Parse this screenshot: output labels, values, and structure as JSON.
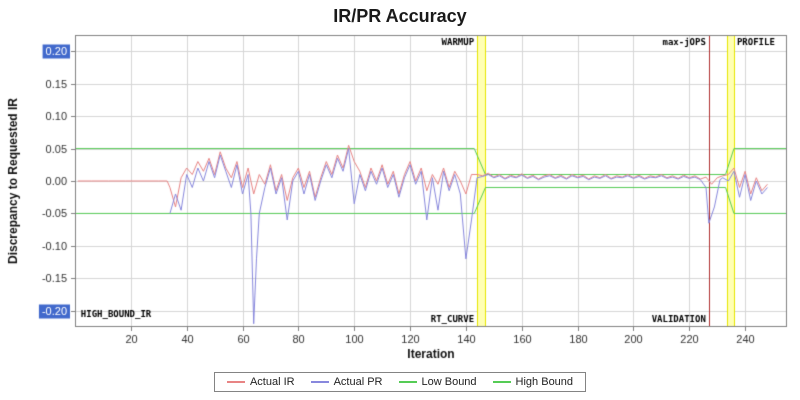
{
  "page": {
    "title": "IR/PR Accuracy"
  },
  "legend": {
    "items": [
      {
        "label": "Actual IR",
        "color": "#e88484"
      },
      {
        "label": "Actual PR",
        "color": "#8888dd"
      },
      {
        "label": "Low Bound",
        "color": "#55cc55"
      },
      {
        "label": "High Bound",
        "color": "#55cc55"
      }
    ]
  },
  "chart_data": {
    "type": "line",
    "title": "IR/PR Accuracy",
    "xlabel": "Iteration",
    "ylabel": "Discrepancy to Requested IR",
    "xlim": [
      0,
      255
    ],
    "ylim": [
      -0.225,
      0.225
    ],
    "x_ticks": [
      20,
      40,
      60,
      80,
      100,
      120,
      140,
      160,
      180,
      200,
      220,
      240
    ],
    "y_ticks": [
      -0.2,
      -0.15,
      -0.1,
      -0.05,
      0.0,
      0.05,
      0.1,
      0.15,
      0.2
    ],
    "y_tick_highlighted": [
      0.2,
      -0.2
    ],
    "grid": true,
    "legend_position": "bottom",
    "colors": {
      "grid": "#d6d6d6",
      "plot_border": "#808080",
      "tick_text": "#333333",
      "axis_title": "#111111",
      "marker_text": "#000000",
      "highlight_bg": "#4169cc",
      "highlight_text": "#ffffff",
      "plot_bg": "#ffffff"
    },
    "bands": [
      {
        "x0": 144,
        "x1": 147,
        "fill": "#ffffb3",
        "border": "#e6e600",
        "label_top": "WARMUP",
        "label_bottom": "RT_CURVE",
        "label_side": "left"
      },
      {
        "x0": 233.5,
        "x1": 236,
        "fill": "#ffffb3",
        "border": "#e6e600",
        "label_top": "PROFILE",
        "label_bottom": "",
        "label_side": "right"
      }
    ],
    "vlines": [
      {
        "x": 227,
        "color": "#b03030",
        "label_top": "max-jOPS",
        "label_bottom": "VALIDATION"
      }
    ],
    "annotations": [
      {
        "text": "HIGH_BOUND_IR",
        "x": 1,
        "y": -0.21
      }
    ],
    "bounds_series": [
      {
        "name": "Low Bound",
        "color": "#55cc55",
        "points": [
          [
            0,
            -0.05
          ],
          [
            143,
            -0.05
          ],
          [
            147,
            -0.01
          ],
          [
            233,
            -0.01
          ],
          [
            236,
            -0.05
          ],
          [
            255,
            -0.05
          ]
        ]
      },
      {
        "name": "High Bound",
        "color": "#55cc55",
        "points": [
          [
            0,
            0.05
          ],
          [
            143,
            0.05
          ],
          [
            147,
            0.01
          ],
          [
            233,
            0.01
          ],
          [
            236,
            0.05
          ],
          [
            255,
            0.05
          ]
        ]
      }
    ],
    "series": [
      {
        "name": "Actual IR",
        "color": "#e88484",
        "points": [
          [
            1,
            0
          ],
          [
            6,
            0
          ],
          [
            12,
            0
          ],
          [
            18,
            0
          ],
          [
            24,
            0
          ],
          [
            30,
            0
          ],
          [
            33,
            0
          ],
          [
            34,
            -0.01
          ],
          [
            36,
            -0.04
          ],
          [
            38,
            0.005
          ],
          [
            40,
            0.02
          ],
          [
            42,
            0.01
          ],
          [
            44,
            0.03
          ],
          [
            46,
            0.015
          ],
          [
            48,
            0.035
          ],
          [
            50,
            0.01
          ],
          [
            52,
            0.045
          ],
          [
            54,
            0.02
          ],
          [
            56,
            0.005
          ],
          [
            58,
            0.03
          ],
          [
            60,
            -0.01
          ],
          [
            62,
            0.02
          ],
          [
            64,
            -0.02
          ],
          [
            66,
            0.01
          ],
          [
            68,
            -0.005
          ],
          [
            70,
            0.025
          ],
          [
            72,
            -0.015
          ],
          [
            74,
            0.01
          ],
          [
            76,
            -0.03
          ],
          [
            78,
            0.005
          ],
          [
            80,
            0.02
          ],
          [
            82,
            -0.01
          ],
          [
            84,
            0.015
          ],
          [
            86,
            -0.025
          ],
          [
            88,
            0.005
          ],
          [
            90,
            0.03
          ],
          [
            92,
            0.01
          ],
          [
            94,
            0.04
          ],
          [
            96,
            0.02
          ],
          [
            98,
            0.055
          ],
          [
            100,
            0.03
          ],
          [
            102,
            0.015
          ],
          [
            104,
            -0.01
          ],
          [
            106,
            0.02
          ],
          [
            108,
            0
          ],
          [
            110,
            0.025
          ],
          [
            112,
            -0.005
          ],
          [
            114,
            0.015
          ],
          [
            116,
            -0.02
          ],
          [
            118,
            0.01
          ],
          [
            120,
            0.03
          ],
          [
            122,
            0
          ],
          [
            124,
            0.02
          ],
          [
            126,
            -0.015
          ],
          [
            128,
            0.01
          ],
          [
            130,
            -0.005
          ],
          [
            132,
            0.02
          ],
          [
            134,
            -0.01
          ],
          [
            136,
            0.015
          ],
          [
            138,
            0
          ],
          [
            140,
            -0.02
          ],
          [
            142,
            0.01
          ],
          [
            144,
            0.01
          ],
          [
            146,
            0.008
          ],
          [
            148,
            0.012
          ],
          [
            150,
            0.006
          ],
          [
            152,
            0.01
          ],
          [
            154,
            0.004
          ],
          [
            156,
            0.009
          ],
          [
            158,
            0.006
          ],
          [
            160,
            0.011
          ],
          [
            162,
            0.005
          ],
          [
            164,
            0.009
          ],
          [
            166,
            0.003
          ],
          [
            168,
            0.008
          ],
          [
            170,
            0.01
          ],
          [
            172,
            0.005
          ],
          [
            174,
            0.009
          ],
          [
            176,
            0.004
          ],
          [
            178,
            0.01
          ],
          [
            180,
            0.006
          ],
          [
            182,
            0.009
          ],
          [
            184,
            0.003
          ],
          [
            186,
            0.008
          ],
          [
            188,
            0.005
          ],
          [
            190,
            0.01
          ],
          [
            192,
            0.004
          ],
          [
            194,
            0.008
          ],
          [
            196,
            0.006
          ],
          [
            198,
            0.01
          ],
          [
            200,
            0.005
          ],
          [
            202,
            0.009
          ],
          [
            204,
            0.004
          ],
          [
            206,
            0.008
          ],
          [
            208,
            0.006
          ],
          [
            210,
            0.01
          ],
          [
            212,
            0.005
          ],
          [
            214,
            0.008
          ],
          [
            216,
            0.004
          ],
          [
            218,
            0.009
          ],
          [
            220,
            0.005
          ],
          [
            222,
            0.008
          ],
          [
            224,
            0.003
          ],
          [
            226,
            0.006
          ],
          [
            228,
            -0.005
          ],
          [
            230,
            0.005
          ],
          [
            232,
            0.008
          ],
          [
            234,
            0.01
          ],
          [
            236,
            0.02
          ],
          [
            238,
            -0.01
          ],
          [
            240,
            0.015
          ],
          [
            242,
            -0.02
          ],
          [
            244,
            0.005
          ],
          [
            246,
            -0.015
          ],
          [
            248,
            -0.005
          ]
        ]
      },
      {
        "name": "Actual PR",
        "color": "#8888dd",
        "points": [
          [
            34,
            -0.05
          ],
          [
            36,
            -0.02
          ],
          [
            38,
            -0.045
          ],
          [
            40,
            0.01
          ],
          [
            42,
            -0.01
          ],
          [
            44,
            0.02
          ],
          [
            46,
            0
          ],
          [
            48,
            0.03
          ],
          [
            50,
            0.005
          ],
          [
            52,
            0.04
          ],
          [
            54,
            0.015
          ],
          [
            56,
            -0.01
          ],
          [
            58,
            0.025
          ],
          [
            60,
            -0.02
          ],
          [
            62,
            0.01
          ],
          [
            63,
            -0.05
          ],
          [
            64,
            -0.22
          ],
          [
            65,
            -0.12
          ],
          [
            66,
            -0.05
          ],
          [
            68,
            -0.01
          ],
          [
            70,
            0.02
          ],
          [
            72,
            -0.02
          ],
          [
            74,
            0.005
          ],
          [
            76,
            -0.06
          ],
          [
            78,
            0
          ],
          [
            80,
            0.015
          ],
          [
            82,
            -0.02
          ],
          [
            84,
            0.01
          ],
          [
            86,
            -0.03
          ],
          [
            88,
            0
          ],
          [
            90,
            0.025
          ],
          [
            92,
            0.005
          ],
          [
            94,
            0.035
          ],
          [
            96,
            0.015
          ],
          [
            98,
            0.05
          ],
          [
            100,
            -0.035
          ],
          [
            102,
            0.01
          ],
          [
            104,
            -0.015
          ],
          [
            106,
            0.015
          ],
          [
            108,
            -0.005
          ],
          [
            110,
            0.02
          ],
          [
            112,
            -0.01
          ],
          [
            114,
            0.01
          ],
          [
            116,
            -0.025
          ],
          [
            118,
            0.005
          ],
          [
            120,
            0.025
          ],
          [
            122,
            -0.005
          ],
          [
            124,
            0.015
          ],
          [
            126,
            -0.06
          ],
          [
            128,
            0.005
          ],
          [
            130,
            -0.045
          ],
          [
            132,
            0.015
          ],
          [
            134,
            -0.015
          ],
          [
            136,
            0.01
          ],
          [
            138,
            -0.02
          ],
          [
            140,
            -0.12
          ],
          [
            142,
            -0.06
          ],
          [
            144,
            0.005
          ],
          [
            146,
            0.007
          ],
          [
            148,
            0.01
          ],
          [
            150,
            0.005
          ],
          [
            152,
            0.008
          ],
          [
            154,
            0.003
          ],
          [
            156,
            0.007
          ],
          [
            158,
            0.005
          ],
          [
            160,
            0.009
          ],
          [
            162,
            0.004
          ],
          [
            164,
            0.007
          ],
          [
            166,
            0.002
          ],
          [
            168,
            0.006
          ],
          [
            170,
            0.008
          ],
          [
            172,
            0.004
          ],
          [
            174,
            0.007
          ],
          [
            176,
            0.003
          ],
          [
            178,
            0.008
          ],
          [
            180,
            0.005
          ],
          [
            182,
            0.007
          ],
          [
            184,
            0.002
          ],
          [
            186,
            0.006
          ],
          [
            188,
            0.004
          ],
          [
            190,
            0.008
          ],
          [
            192,
            0.003
          ],
          [
            194,
            0.006
          ],
          [
            196,
            0.005
          ],
          [
            198,
            0.008
          ],
          [
            200,
            0.004
          ],
          [
            202,
            0.007
          ],
          [
            204,
            0.003
          ],
          [
            206,
            0.006
          ],
          [
            208,
            0.005
          ],
          [
            210,
            0.008
          ],
          [
            212,
            0.004
          ],
          [
            214,
            0.006
          ],
          [
            216,
            0.003
          ],
          [
            218,
            0.007
          ],
          [
            220,
            0.004
          ],
          [
            222,
            0.006
          ],
          [
            224,
            0.002
          ],
          [
            226,
            -0.01
          ],
          [
            227,
            -0.065
          ],
          [
            229,
            -0.04
          ],
          [
            231,
            0.002
          ],
          [
            232,
            0.005
          ],
          [
            234,
            0
          ],
          [
            236,
            0.015
          ],
          [
            238,
            -0.025
          ],
          [
            240,
            0.01
          ],
          [
            242,
            -0.03
          ],
          [
            244,
            0
          ],
          [
            246,
            -0.02
          ],
          [
            248,
            -0.01
          ]
        ]
      }
    ]
  }
}
